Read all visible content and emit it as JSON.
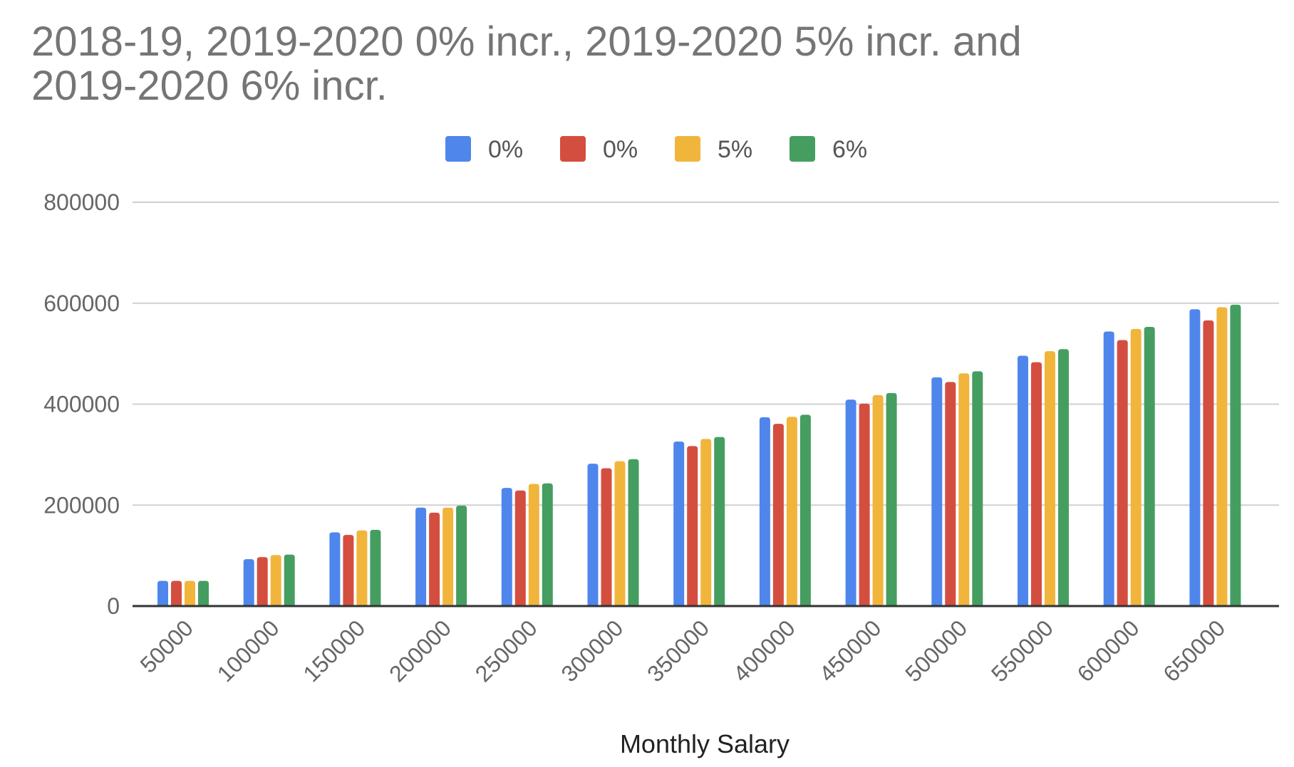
{
  "chart_data": {
    "type": "bar",
    "title_lines": [
      "2018-19, 2019-2020 0% incr., 2019-2020 5% incr. and",
      "2019-2020 6% incr."
    ],
    "xlabel": "Monthly Salary",
    "ylabel": "",
    "categories": [
      "50000",
      "100000",
      "150000",
      "200000",
      "250000",
      "300000",
      "350000",
      "400000",
      "450000",
      "500000",
      "550000",
      "600000",
      "650000"
    ],
    "y_ticks": [
      "0",
      "200000",
      "400000",
      "600000",
      "800000"
    ],
    "ylim": [
      0,
      800000
    ],
    "grid": true,
    "legend_position": "top-center",
    "series": [
      {
        "name": "0%",
        "color": "#4f86ec",
        "values": [
          50000,
          93000,
          146000,
          195000,
          234000,
          282000,
          326000,
          374000,
          409000,
          453000,
          496000,
          544000,
          588000
        ]
      },
      {
        "name": "0%",
        "color": "#d44e3f",
        "values": [
          50000,
          97000,
          141000,
          185000,
          229000,
          273000,
          317000,
          361000,
          401000,
          444000,
          483000,
          527000,
          566000
        ]
      },
      {
        "name": "5%",
        "color": "#f1b53c",
        "values": [
          50000,
          101000,
          150000,
          195000,
          242000,
          287000,
          331000,
          375000,
          418000,
          461000,
          505000,
          549000,
          592000
        ]
      },
      {
        "name": "6%",
        "color": "#459e60",
        "values": [
          50000,
          102000,
          151000,
          199000,
          243000,
          291000,
          335000,
          379000,
          422000,
          465000,
          509000,
          553000,
          597000
        ]
      }
    ]
  }
}
